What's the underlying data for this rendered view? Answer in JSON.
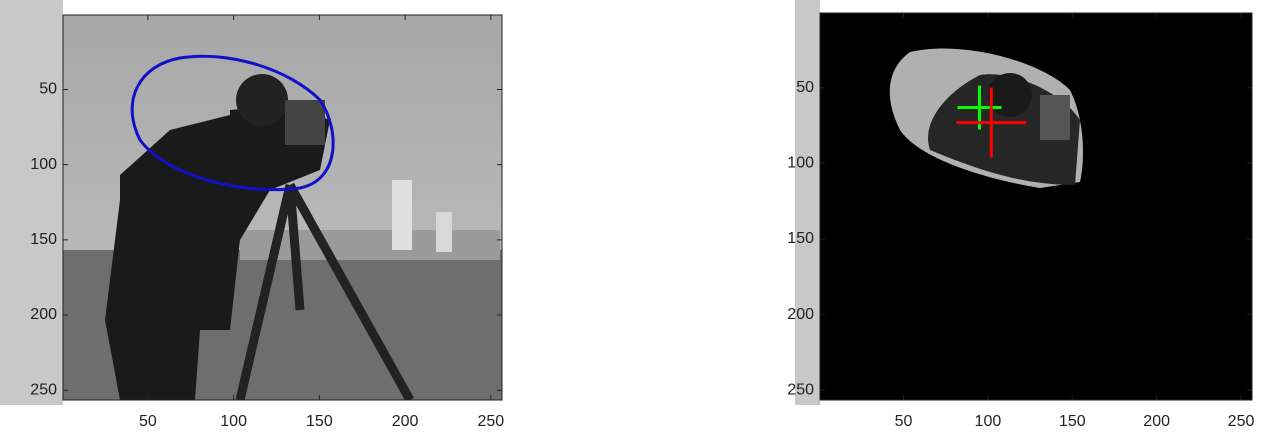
{
  "chart_data": [
    {
      "type": "image",
      "xlim": [
        0.5,
        256.5
      ],
      "ylim": [
        0.5,
        256.5
      ],
      "xticks": [
        50,
        100,
        150,
        200,
        250
      ],
      "yticks": [
        50,
        100,
        150,
        200,
        250
      ]
    },
    {
      "type": "image",
      "xlim": [
        0.5,
        256.5
      ],
      "ylim": [
        0.5,
        256.5
      ],
      "xticks": [
        50,
        100,
        150,
        200,
        250
      ],
      "yticks": [
        50,
        100,
        150,
        200,
        250
      ],
      "series": [
        {
          "color": "#00ff00",
          "x": [
            95
          ],
          "y": [
            63
          ]
        },
        {
          "color": "#ff0000",
          "x": [
            102
          ],
          "y": [
            73
          ]
        }
      ]
    }
  ]
}
